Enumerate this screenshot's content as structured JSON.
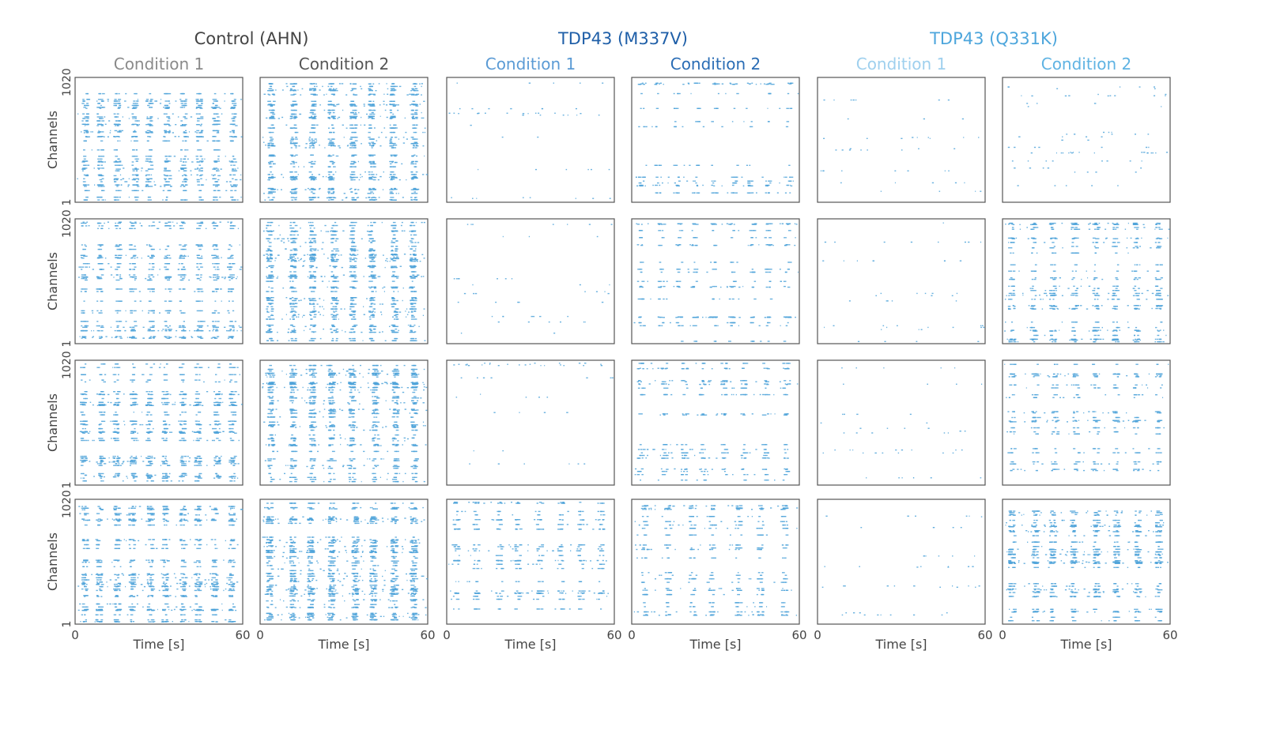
{
  "chart_data": {
    "type": "scatter",
    "kind": "spike-raster-grid",
    "groups": [
      {
        "title": "Control (AHN)",
        "title_color": "#444444",
        "conditions": [
          {
            "label": "Condition 1",
            "label_color": "#8a8a8a"
          },
          {
            "label": "Condition 2",
            "label_color": "#555555"
          }
        ]
      },
      {
        "title": "TDP43 (M337V)",
        "title_color": "#1f5fa8",
        "conditions": [
          {
            "label": "Condition 1",
            "label_color": "#5b9bd5"
          },
          {
            "label": "Condition 2",
            "label_color": "#2a6db5"
          }
        ]
      },
      {
        "title": "TDP43 (Q331K)",
        "title_color": "#4da6dc",
        "conditions": [
          {
            "label": "Condition 1",
            "label_color": "#9fd0ee"
          },
          {
            "label": "Condition 2",
            "label_color": "#5fb3e3"
          }
        ]
      }
    ],
    "rows": 4,
    "xlabel": "Time [s]",
    "ylabel": "Channels",
    "xlim": [
      0,
      60
    ],
    "ylim": [
      1,
      1020
    ],
    "xticks": [
      "0",
      "60"
    ],
    "yticks": [
      "1",
      "1020"
    ],
    "spike_color": "#4fa3d9",
    "bursts_per_min": [
      [
        10,
        8,
        0,
        9,
        0,
        0
      ],
      [
        10,
        8,
        0,
        9,
        0,
        8
      ],
      [
        10,
        8,
        0,
        8,
        0,
        8
      ],
      [
        10,
        8,
        8,
        7,
        0,
        8
      ]
    ],
    "activity_level": [
      [
        0.55,
        0.85,
        0.03,
        0.12,
        0.02,
        0.18
      ],
      [
        0.45,
        0.9,
        0.03,
        0.2,
        0.03,
        0.45
      ],
      [
        0.55,
        0.85,
        0.04,
        0.25,
        0.03,
        0.28
      ],
      [
        0.6,
        0.95,
        0.3,
        0.35,
        0.03,
        0.6
      ]
    ]
  }
}
